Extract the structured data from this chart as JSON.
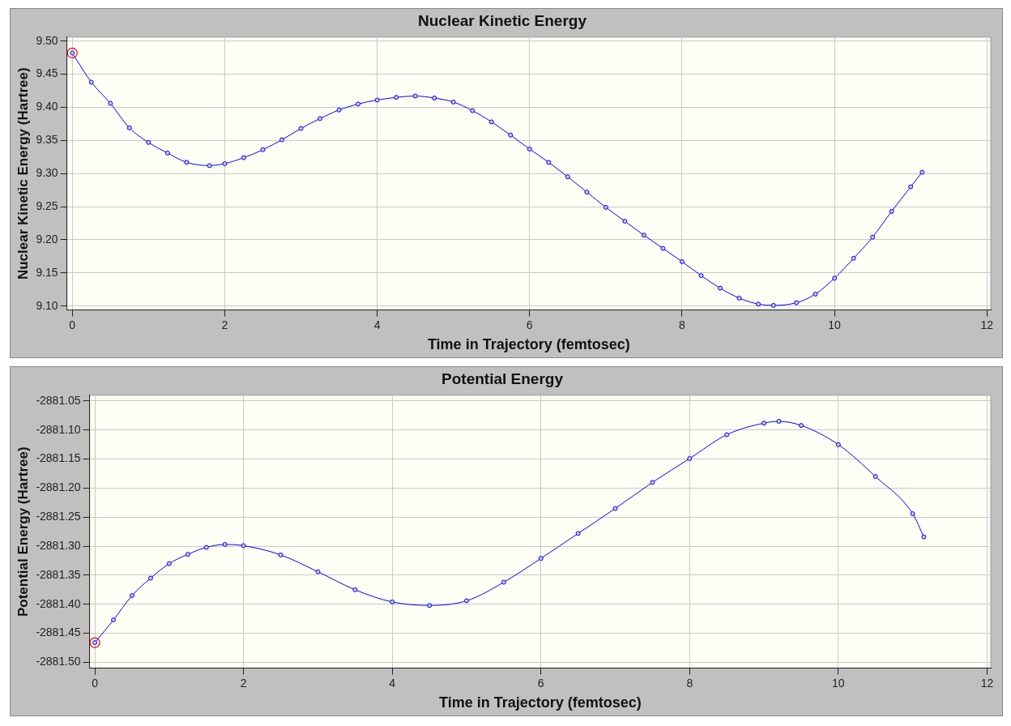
{
  "chart_data": [
    {
      "type": "line",
      "title": "Nuclear Kinetic Energy",
      "xlabel": "Time in Trajectory (femtosec)",
      "ylabel": "Nuclear Kinetic Energy (Hartree)",
      "xlim": [
        -0.07,
        12.05
      ],
      "xticks": [
        0,
        2,
        4,
        6,
        8,
        10,
        12
      ],
      "ylim": [
        9.094,
        9.506
      ],
      "yticks": [
        {
          "value": 9.1,
          "label": "9.10"
        },
        {
          "value": 9.15,
          "label": "9.15"
        },
        {
          "value": 9.2,
          "label": "9.20"
        },
        {
          "value": 9.25,
          "label": "9.25"
        },
        {
          "value": 9.3,
          "label": "9.30"
        },
        {
          "value": 9.35,
          "label": "9.35"
        },
        {
          "value": 9.4,
          "label": "9.40"
        },
        {
          "value": 9.45,
          "label": "9.45"
        },
        {
          "value": 9.5,
          "label": "9.50"
        }
      ],
      "grid": true,
      "legend": false,
      "marker": "circle",
      "series": [
        {
          "color": "#0000ff",
          "x": [
            0,
            0.25,
            0.5,
            0.75,
            1.0,
            1.25,
            1.5,
            1.8,
            2.0,
            2.25,
            2.5,
            2.75,
            3.0,
            3.25,
            3.5,
            3.75,
            4.0,
            4.25,
            4.5,
            4.75,
            5.0,
            5.25,
            5.5,
            5.75,
            6.0,
            6.25,
            6.5,
            6.75,
            7.0,
            7.25,
            7.5,
            7.75,
            8.0,
            8.25,
            8.5,
            8.75,
            9.0,
            9.2,
            9.5,
            9.75,
            10.0,
            10.25,
            10.5,
            10.75,
            11.0,
            11.15
          ],
          "values": [
            9.482,
            9.438,
            9.406,
            9.369,
            9.347,
            9.331,
            9.317,
            9.312,
            9.315,
            9.324,
            9.336,
            9.351,
            9.368,
            9.383,
            9.396,
            9.405,
            9.411,
            9.415,
            9.417,
            9.414,
            9.408,
            9.395,
            9.378,
            9.358,
            9.337,
            9.317,
            9.295,
            9.272,
            9.249,
            9.228,
            9.207,
            9.187,
            9.167,
            9.146,
            9.127,
            9.112,
            9.103,
            9.101,
            9.105,
            9.118,
            9.142,
            9.172,
            9.204,
            9.243,
            9.28,
            9.302
          ]
        },
        {
          "type": "scatter",
          "color": "#ff0000",
          "x": [
            0
          ],
          "values": [
            9.482
          ]
        }
      ]
    },
    {
      "type": "line",
      "title": "Potential Energy",
      "xlabel": "Time in Trajectory (femtosec)",
      "ylabel": "Potential Energy (Hartree)",
      "xlim": [
        -0.07,
        12.05
      ],
      "xticks": [
        0,
        2,
        4,
        6,
        8,
        10,
        12
      ],
      "ylim": [
        -2881.51,
        -2881.04
      ],
      "yticks": [
        {
          "value": -2881.5,
          "label": "-2881.50"
        },
        {
          "value": -2881.45,
          "label": "-2881.45"
        },
        {
          "value": -2881.4,
          "label": "-2881.40"
        },
        {
          "value": -2881.35,
          "label": "-2881.35"
        },
        {
          "value": -2881.3,
          "label": "-2881.30"
        },
        {
          "value": -2881.25,
          "label": "-2881.25"
        },
        {
          "value": -2881.2,
          "label": "-2881.20"
        },
        {
          "value": -2881.15,
          "label": "-2881.15"
        },
        {
          "value": -2881.1,
          "label": "-2881.10"
        },
        {
          "value": -2881.05,
          "label": "-2881.05"
        }
      ],
      "grid": true,
      "legend": false,
      "marker": "circle",
      "series": [
        {
          "color": "#0000ff",
          "x": [
            0,
            0.25,
            0.5,
            0.75,
            1.0,
            1.25,
            1.5,
            1.75,
            2.0,
            2.5,
            3.0,
            3.5,
            4.0,
            4.5,
            5.0,
            5.5,
            6.0,
            6.5,
            7.0,
            7.5,
            8.0,
            8.5,
            9.0,
            9.2,
            9.5,
            10.0,
            10.5,
            11.0,
            11.15
          ],
          "values": [
            -2881.466,
            -2881.427,
            -2881.385,
            -2881.355,
            -2881.33,
            -2881.314,
            -2881.302,
            -2881.297,
            -2881.299,
            -2881.315,
            -2881.344,
            -2881.375,
            -2881.396,
            -2881.402,
            -2881.394,
            -2881.362,
            -2881.321,
            -2881.278,
            -2881.235,
            -2881.19,
            -2881.149,
            -2881.108,
            -2881.088,
            -2881.085,
            -2881.092,
            -2881.125,
            -2881.18,
            -2881.244,
            -2881.284
          ]
        },
        {
          "type": "scatter",
          "color": "#ff0000",
          "x": [
            0
          ],
          "values": [
            -2881.466
          ]
        }
      ]
    }
  ]
}
